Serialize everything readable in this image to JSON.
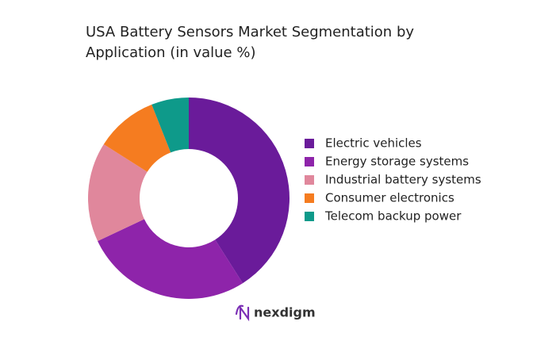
{
  "chart_data": {
    "type": "donut",
    "title": "USA Battery Sensors Market Segmentation by Application (in value %)",
    "categories": [
      "Electric vehicles",
      "Energy storage systems",
      "Industrial battery systems",
      "Consumer electronics",
      "Telecom backup power"
    ],
    "values": [
      41,
      27,
      16,
      10,
      6
    ],
    "colors": [
      "#6a1b9a",
      "#8e24aa",
      "#e0879c",
      "#f57c20",
      "#0e9a8a"
    ],
    "legend": "right"
  },
  "logo": "nexdigm"
}
